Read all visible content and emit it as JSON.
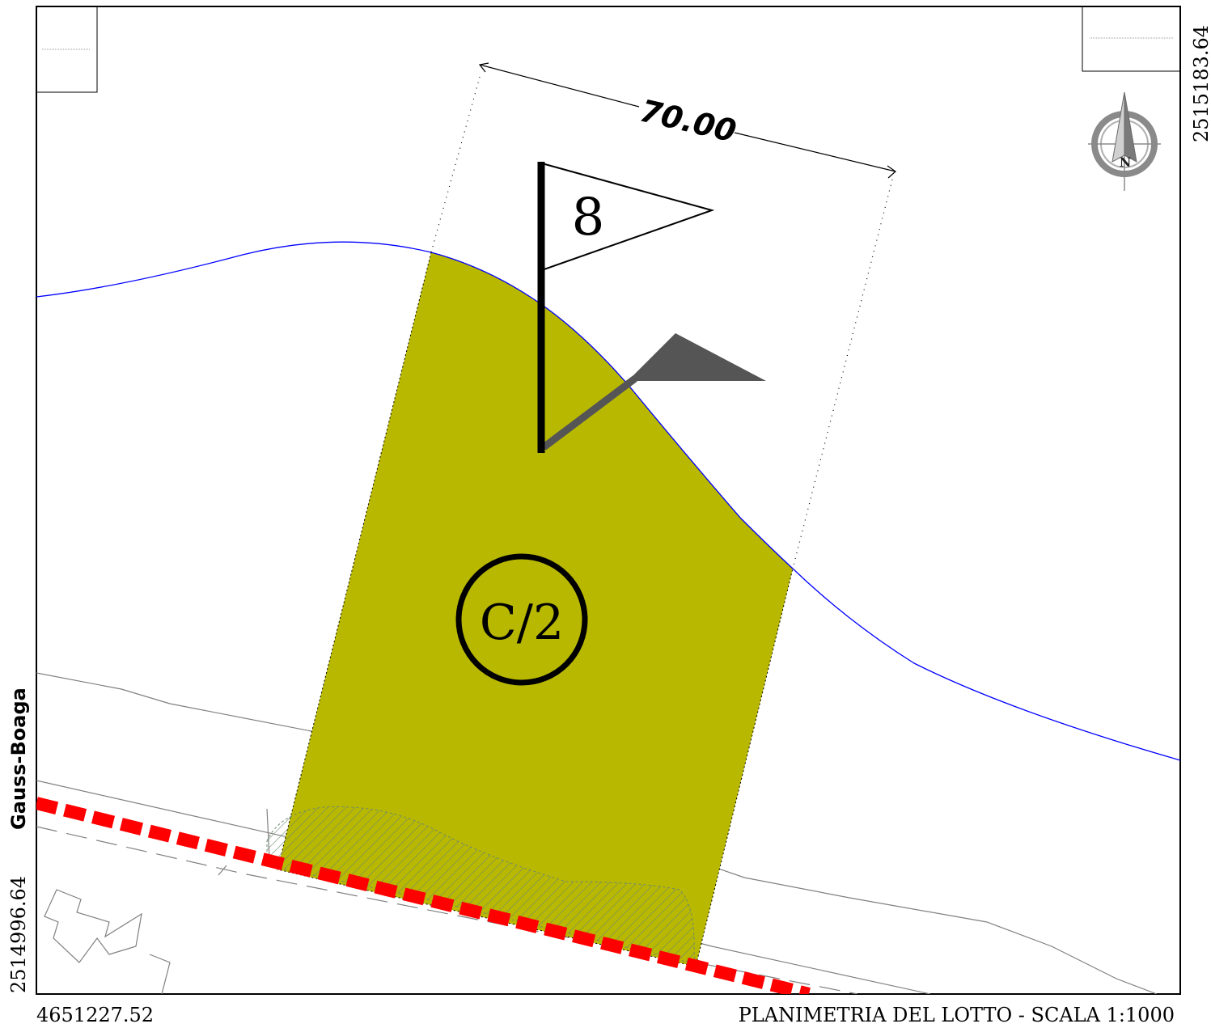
{
  "coords": {
    "top_right_northing": "2515183.64",
    "bottom_left_northing": "2514996.64",
    "bottom_left_easting": "4651227.52"
  },
  "crs_label": "Gauss-Boaga",
  "map_title": "PLANIMETRIA DEL LOTTO - SCALA 1:1000",
  "dimension_label": "70.00",
  "lot_number": "8",
  "zone_label": "C/2",
  "north_label": "N",
  "colors": {
    "lot_fill": "#b8b800",
    "boundary_blue": "#0000ff",
    "road_red": "#ff0000",
    "flag_shadow": "#555555",
    "line_gray": "#808080"
  }
}
